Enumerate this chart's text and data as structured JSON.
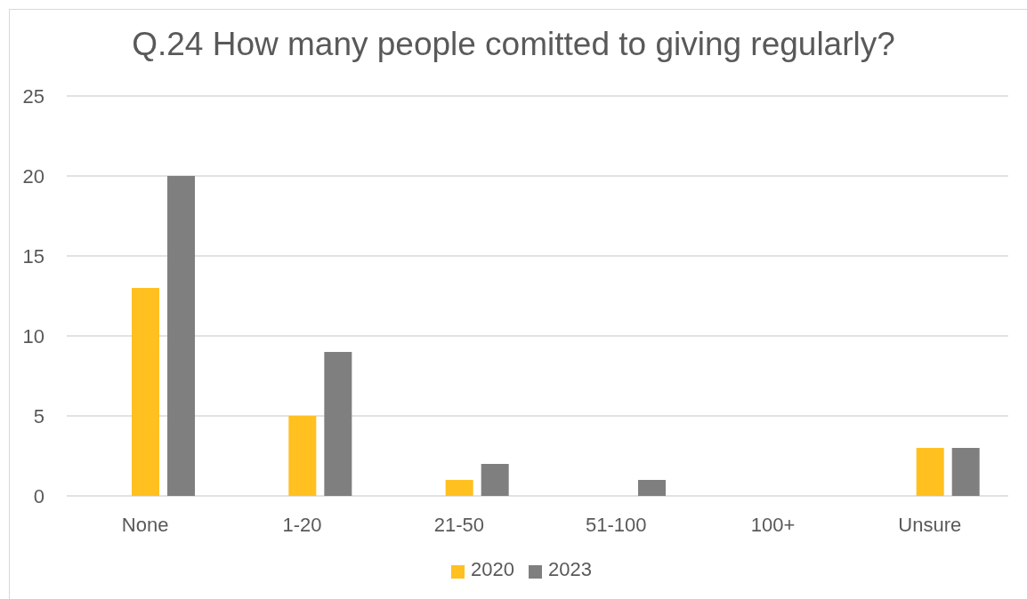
{
  "chart_data": {
    "type": "bar",
    "title": "Q.24 How many people comitted to giving regularly?",
    "categories": [
      "None",
      "1-20",
      "21-50",
      "51-100",
      "100+",
      "Unsure"
    ],
    "series": [
      {
        "name": "2020",
        "color": "#ffc020",
        "values": [
          13,
          5,
          1,
          0,
          0,
          3
        ]
      },
      {
        "name": "2023",
        "color": "#7f7f7f",
        "values": [
          20,
          9,
          2,
          1,
          0,
          3
        ]
      }
    ],
    "ylim": [
      0,
      25
    ],
    "yticks": [
      0,
      5,
      10,
      15,
      20,
      25
    ],
    "grid": "y",
    "legend": "bottom"
  }
}
